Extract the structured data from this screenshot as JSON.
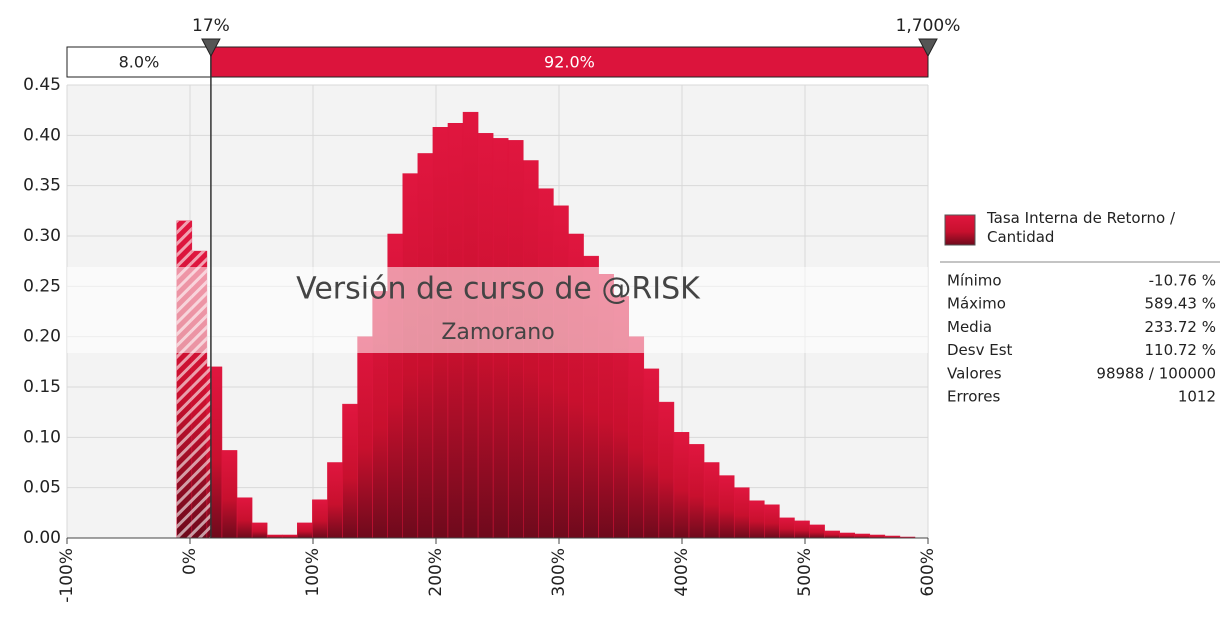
{
  "chart_data": {
    "type": "histogram",
    "bins": [
      -10.76,
      1.49,
      13.74,
      25.99,
      38.24,
      50.48,
      62.73,
      74.98,
      87.23,
      99.48,
      111.73,
      123.98,
      136.23,
      148.47,
      160.72,
      172.97,
      185.22,
      197.47,
      209.72,
      221.97,
      234.22,
      246.46,
      258.71,
      270.96,
      283.21,
      295.46,
      307.71,
      319.96,
      332.21,
      344.46,
      356.7,
      368.95,
      381.2,
      393.45,
      405.7,
      417.95,
      430.2,
      442.45,
      454.69,
      466.94,
      479.19,
      491.44,
      503.69,
      515.94,
      528.19,
      540.44,
      552.68,
      564.93,
      577.18,
      589.43
    ],
    "values": [
      0.315,
      0.285,
      0.17,
      0.087,
      0.04,
      0.015,
      0.003,
      0.003,
      0.015,
      0.038,
      0.075,
      0.133,
      0.2,
      0.245,
      0.302,
      0.362,
      0.382,
      0.408,
      0.412,
      0.423,
      0.402,
      0.397,
      0.395,
      0.375,
      0.347,
      0.33,
      0.302,
      0.28,
      0.262,
      0.24,
      0.2,
      0.168,
      0.135,
      0.105,
      0.093,
      0.075,
      0.062,
      0.05,
      0.037,
      0.033,
      0.02,
      0.017,
      0.013,
      0.007,
      0.005,
      0.004,
      0.003,
      0.002,
      0.001
    ],
    "color": "#dc143c",
    "xlim": [
      -100,
      600
    ],
    "xticks": [
      {
        "value": -100,
        "label": "-100%"
      },
      {
        "value": 0,
        "label": "0%"
      },
      {
        "value": 100,
        "label": "100%"
      },
      {
        "value": 200,
        "label": "200%"
      },
      {
        "value": 300,
        "label": "300%"
      },
      {
        "value": 400,
        "label": "400%"
      },
      {
        "value": 500,
        "label": "500%"
      },
      {
        "value": 600,
        "label": "600%"
      }
    ],
    "ylim": [
      0,
      0.45
    ],
    "yticks": [
      {
        "value": 0,
        "label": "0.00"
      },
      {
        "value": 0.05,
        "label": "0.05"
      },
      {
        "value": 0.1,
        "label": "0.10"
      },
      {
        "value": 0.15,
        "label": "0.15"
      },
      {
        "value": 0.2,
        "label": "0.20"
      },
      {
        "value": 0.25,
        "label": "0.25"
      },
      {
        "value": 0.3,
        "label": "0.30"
      },
      {
        "value": 0.35,
        "label": "0.35"
      },
      {
        "value": 0.4,
        "label": "0.40"
      },
      {
        "value": 0.45,
        "label": "0.45"
      }
    ],
    "grid": true,
    "delimiters": [
      {
        "value": 17,
        "label": "17%"
      },
      {
        "value": 1700,
        "label": "1,700%"
      }
    ],
    "regions": {
      "values": [
        8.0,
        92.0
      ],
      "value_labels": [
        "8.0%",
        "92.0%"
      ]
    },
    "watermark": [
      "Versión de curso de @RISK",
      "Zamorano"
    ],
    "legend": {
      "name": "Tasa Interna de Retorno / Cantidad"
    }
  },
  "stats": {
    "rows": [
      [
        "Mínimo",
        "-10.76 %"
      ],
      [
        "Máximo",
        "589.43 %"
      ],
      [
        "Media",
        "233.72 %"
      ],
      [
        "Desv Est",
        "110.72 %"
      ],
      [
        "Valores",
        "98988 / 100000"
      ],
      [
        "Errores",
        "1012"
      ]
    ]
  }
}
